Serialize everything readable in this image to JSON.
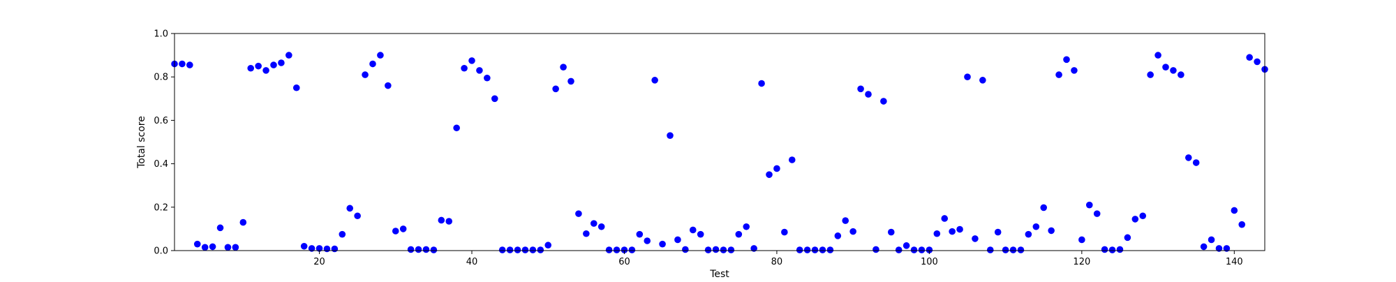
{
  "chart_data": {
    "type": "scatter",
    "xlabel": "Test",
    "ylabel": "Total score",
    "xlim": [
      1,
      144
    ],
    "ylim": [
      0.0,
      1.0
    ],
    "xticks": [
      20,
      40,
      60,
      80,
      100,
      120,
      140
    ],
    "xtick_labels": [
      "20",
      "40",
      "60",
      "80",
      "100",
      "120",
      "140"
    ],
    "yticks": [
      0.0,
      0.2,
      0.4,
      0.6,
      0.8,
      1.0
    ],
    "ytick_labels": [
      "0.0",
      "0.2",
      "0.4",
      "0.6",
      "0.8",
      "1.0"
    ],
    "grid": false,
    "marker_color": "#0000ff",
    "x": [
      1,
      2,
      3,
      4,
      5,
      6,
      7,
      8,
      9,
      10,
      11,
      12,
      13,
      14,
      15,
      16,
      17,
      18,
      19,
      20,
      21,
      22,
      23,
      24,
      25,
      26,
      27,
      28,
      29,
      30,
      31,
      32,
      33,
      34,
      35,
      36,
      37,
      38,
      39,
      40,
      41,
      42,
      43,
      44,
      45,
      46,
      47,
      48,
      49,
      50,
      51,
      52,
      53,
      54,
      55,
      56,
      57,
      58,
      59,
      60,
      61,
      62,
      63,
      64,
      65,
      66,
      67,
      68,
      69,
      70,
      71,
      72,
      73,
      74,
      75,
      76,
      77,
      78,
      79,
      80,
      81,
      82,
      83,
      84,
      85,
      86,
      87,
      88,
      89,
      90,
      91,
      92,
      93,
      94,
      95,
      96,
      97,
      98,
      99,
      100,
      101,
      102,
      103,
      104,
      105,
      106,
      107,
      108,
      109,
      110,
      111,
      112,
      113,
      114,
      115,
      116,
      117,
      118,
      119,
      120,
      121,
      122,
      123,
      124,
      125,
      126,
      127,
      128,
      129,
      130,
      131,
      132,
      133,
      134,
      135,
      136,
      137,
      138,
      139,
      140,
      141,
      142,
      143,
      144
    ],
    "y": [
      0.86,
      0.86,
      0.855,
      0.03,
      0.015,
      0.018,
      0.105,
      0.015,
      0.015,
      0.13,
      0.84,
      0.85,
      0.83,
      0.855,
      0.865,
      0.9,
      0.75,
      0.02,
      0.01,
      0.01,
      0.008,
      0.008,
      0.075,
      0.195,
      0.16,
      0.81,
      0.86,
      0.9,
      0.76,
      0.09,
      0.1,
      0.005,
      0.005,
      0.005,
      0.003,
      0.14,
      0.135,
      0.565,
      0.84,
      0.875,
      0.83,
      0.795,
      0.7,
      0.003,
      0.003,
      0.003,
      0.003,
      0.003,
      0.003,
      0.025,
      0.745,
      0.845,
      0.78,
      0.17,
      0.078,
      0.125,
      0.11,
      0.003,
      0.003,
      0.003,
      0.003,
      0.075,
      0.045,
      0.785,
      0.03,
      0.53,
      0.05,
      0.005,
      0.095,
      0.075,
      0.003,
      0.005,
      0.003,
      0.003,
      0.075,
      0.11,
      0.01,
      0.77,
      0.35,
      0.378,
      0.085,
      0.418,
      0.003,
      0.003,
      0.003,
      0.003,
      0.003,
      0.068,
      0.138,
      0.088,
      0.745,
      0.72,
      0.005,
      0.688,
      0.085,
      0.003,
      0.023,
      0.003,
      0.003,
      0.003,
      0.078,
      0.148,
      0.088,
      0.098,
      0.8,
      0.055,
      0.785,
      0.003,
      0.085,
      0.003,
      0.003,
      0.003,
      0.075,
      0.11,
      0.198,
      0.092,
      0.81,
      0.88,
      0.83,
      0.05,
      0.21,
      0.17,
      0.005,
      0.003,
      0.005,
      0.06,
      0.145,
      0.16,
      0.81,
      0.9,
      0.845,
      0.83,
      0.81,
      0.428,
      0.405,
      0.018,
      0.05,
      0.01,
      0.01,
      0.185,
      0.12,
      0.89,
      0.87,
      0.835
    ]
  }
}
